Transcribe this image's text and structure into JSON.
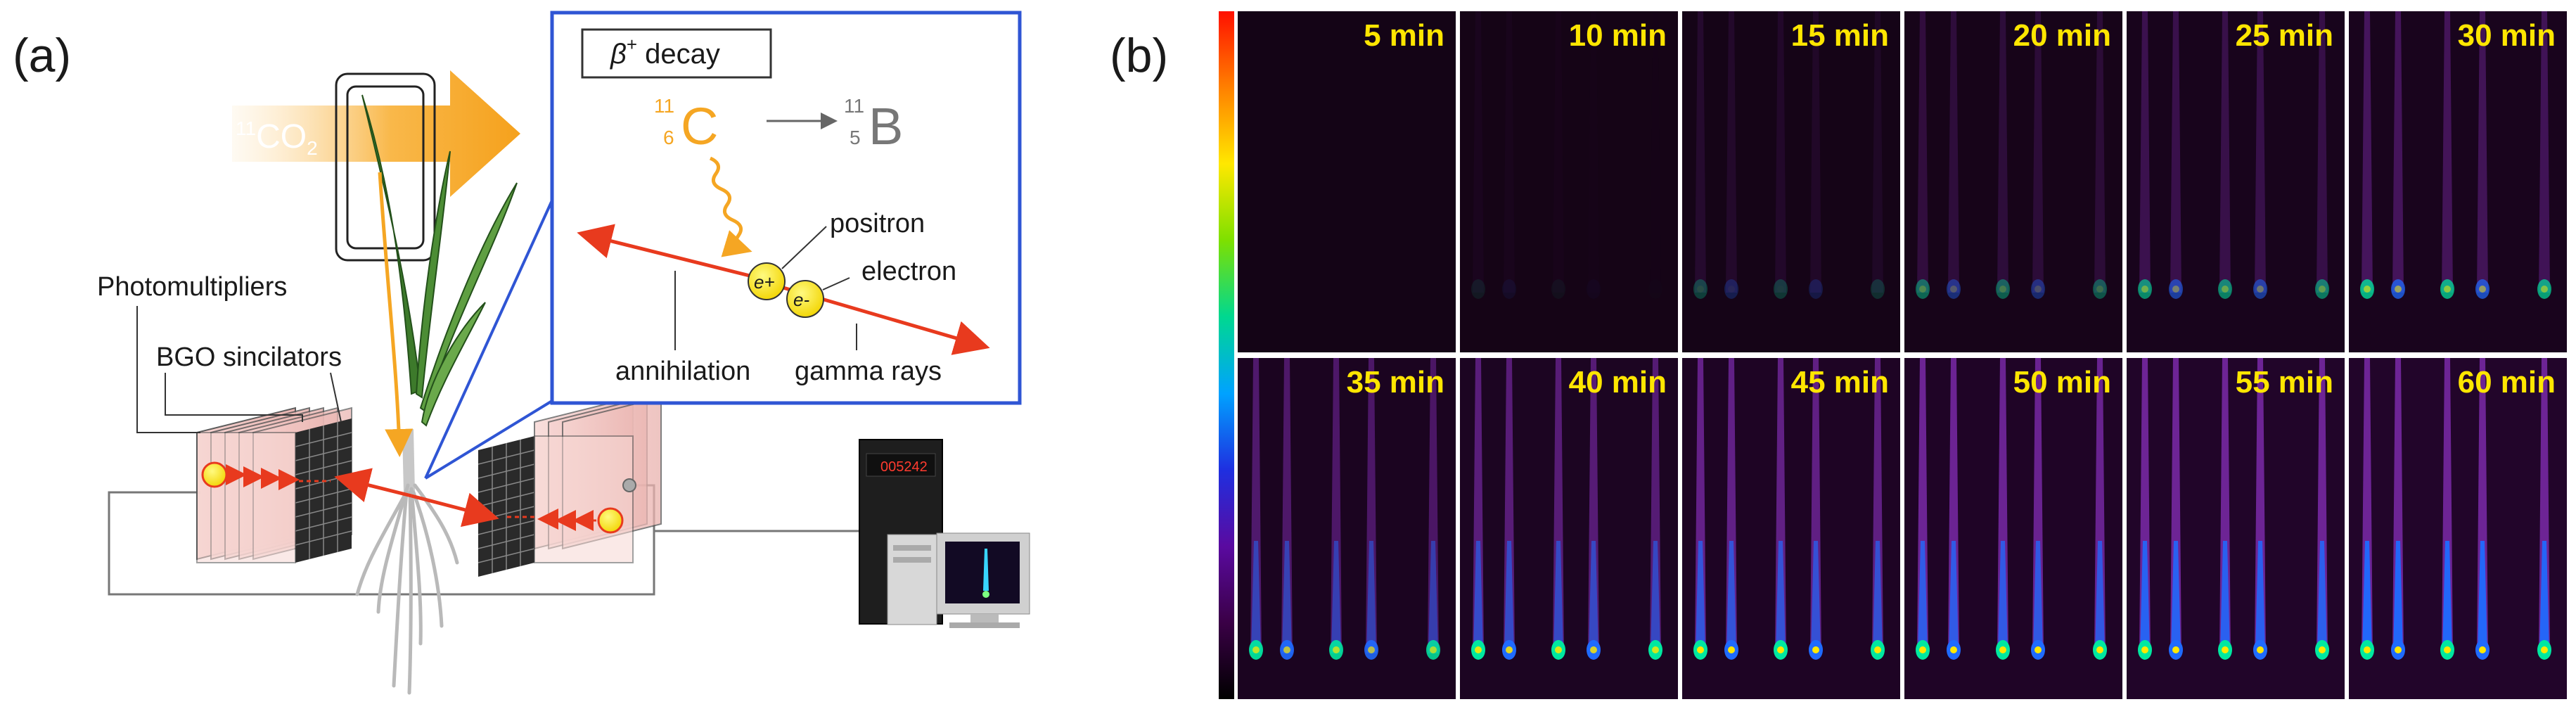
{
  "panel_a": {
    "label": "(a)",
    "co2_label": {
      "mass": "11",
      "formula": "CO",
      "sub": "2"
    },
    "decay_box": {
      "title_beta": "β",
      "title_sup": "+",
      "title_rest": " decay",
      "parent": {
        "mass": "11",
        "z": "6",
        "symbol": "C"
      },
      "daughter": {
        "mass": "11",
        "z": "5",
        "symbol": "B"
      },
      "positron_label": "positron",
      "electron_label": "electron",
      "annihilation_label": "annihilation",
      "gamma_label": "gamma rays",
      "eplus": "e+",
      "eminus": "e-"
    },
    "photomultipliers_label": "Photomultipliers",
    "bgo_label": "BGO sincilators",
    "computer_display": "005242",
    "colors": {
      "orange": "#f5a623",
      "gamma": "#e83a1e",
      "blue_box": "#2f55d4",
      "leaf": "#3d7a2b"
    }
  },
  "panel_b": {
    "label": "(b)",
    "times": [
      "5 min",
      "10 min",
      "15 min",
      "20 min",
      "25 min",
      "30 min",
      "35 min",
      "40 min",
      "45 min",
      "50 min",
      "55 min",
      "60 min"
    ],
    "colormap": [
      "#000000",
      "#3a0046",
      "#5a0aa0",
      "#1f2fe0",
      "#00a2ff",
      "#00d890",
      "#7ee000",
      "#ffe800",
      "#ff8000",
      "#ff1000"
    ]
  }
}
